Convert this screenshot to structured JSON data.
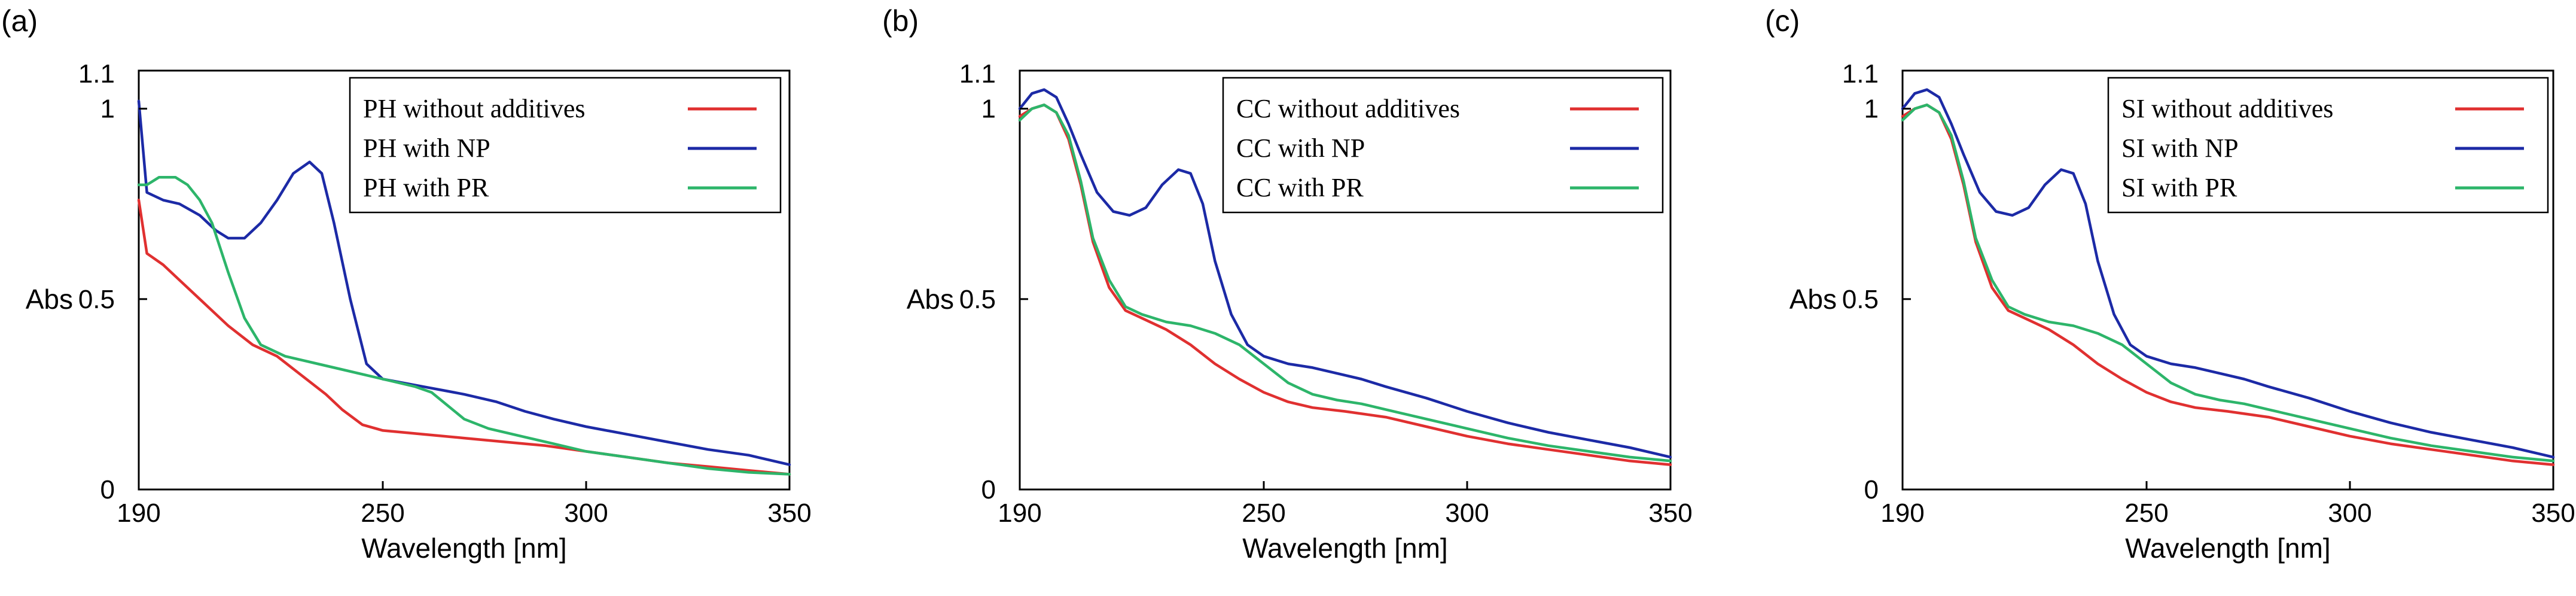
{
  "chart_data": [
    {
      "type": "line",
      "panel_label": "(a)",
      "xlabel": "Wavelength  [nm]",
      "ylabel": "Abs",
      "xlim": [
        190,
        350
      ],
      "ylim": [
        0,
        1.1
      ],
      "x_ticks": [
        190,
        250,
        300,
        350
      ],
      "y_ticks": [
        0,
        0.5,
        1
      ],
      "y_ticks_labels": [
        "0",
        "0.5",
        "1"
      ],
      "y_top_label": "1.1",
      "legend_position": "top-right",
      "series": [
        {
          "name": "PH without additives",
          "color": "#e03030",
          "points": [
            [
              190,
              0.76
            ],
            [
              192,
              0.62
            ],
            [
              196,
              0.59
            ],
            [
              200,
              0.55
            ],
            [
              206,
              0.49
            ],
            [
              212,
              0.43
            ],
            [
              218,
              0.38
            ],
            [
              224,
              0.35
            ],
            [
              230,
              0.3
            ],
            [
              236,
              0.25
            ],
            [
              240,
              0.21
            ],
            [
              245,
              0.17
            ],
            [
              250,
              0.155
            ],
            [
              260,
              0.145
            ],
            [
              270,
              0.135
            ],
            [
              280,
              0.125
            ],
            [
              290,
              0.115
            ],
            [
              300,
              0.1
            ],
            [
              310,
              0.085
            ],
            [
              320,
              0.07
            ],
            [
              330,
              0.06
            ],
            [
              340,
              0.05
            ],
            [
              350,
              0.04
            ]
          ]
        },
        {
          "name": "PH with NP",
          "color": "#1c2aa6",
          "points": [
            [
              190,
              1.02
            ],
            [
              192,
              0.78
            ],
            [
              196,
              0.76
            ],
            [
              200,
              0.75
            ],
            [
              205,
              0.72
            ],
            [
              209,
              0.68
            ],
            [
              212,
              0.66
            ],
            [
              216,
              0.66
            ],
            [
              220,
              0.7
            ],
            [
              224,
              0.76
            ],
            [
              228,
              0.83
            ],
            [
              232,
              0.86
            ],
            [
              235,
              0.83
            ],
            [
              238,
              0.7
            ],
            [
              242,
              0.5
            ],
            [
              246,
              0.33
            ],
            [
              250,
              0.29
            ],
            [
              255,
              0.28
            ],
            [
              260,
              0.27
            ],
            [
              265,
              0.26
            ],
            [
              270,
              0.25
            ],
            [
              278,
              0.23
            ],
            [
              285,
              0.205
            ],
            [
              292,
              0.185
            ],
            [
              300,
              0.165
            ],
            [
              310,
              0.145
            ],
            [
              320,
              0.125
            ],
            [
              330,
              0.105
            ],
            [
              340,
              0.09
            ],
            [
              350,
              0.065
            ]
          ]
        },
        {
          "name": "PH with PR",
          "color": "#2db56a",
          "points": [
            [
              190,
              0.8
            ],
            [
              192,
              0.8
            ],
            [
              195,
              0.82
            ],
            [
              199,
              0.82
            ],
            [
              202,
              0.8
            ],
            [
              205,
              0.76
            ],
            [
              208,
              0.7
            ],
            [
              212,
              0.57
            ],
            [
              216,
              0.45
            ],
            [
              220,
              0.38
            ],
            [
              226,
              0.35
            ],
            [
              234,
              0.33
            ],
            [
              240,
              0.315
            ],
            [
              246,
              0.3
            ],
            [
              252,
              0.285
            ],
            [
              258,
              0.27
            ],
            [
              262,
              0.255
            ],
            [
              266,
              0.22
            ],
            [
              270,
              0.185
            ],
            [
              276,
              0.16
            ],
            [
              284,
              0.14
            ],
            [
              292,
              0.12
            ],
            [
              300,
              0.1
            ],
            [
              310,
              0.085
            ],
            [
              320,
              0.07
            ],
            [
              330,
              0.055
            ],
            [
              340,
              0.045
            ],
            [
              350,
              0.04
            ]
          ]
        }
      ]
    },
    {
      "type": "line",
      "panel_label": "(b)",
      "xlabel": "Wavelength  [nm]",
      "ylabel": "Abs",
      "xlim": [
        190,
        350
      ],
      "ylim": [
        0,
        1.1
      ],
      "x_ticks": [
        190,
        250,
        300,
        350
      ],
      "y_ticks": [
        0,
        0.5,
        1
      ],
      "y_ticks_labels": [
        "0",
        "0.5",
        "1"
      ],
      "y_top_label": "1.1",
      "legend_position": "top-right",
      "series": [
        {
          "name": "CC without additives",
          "color": "#e03030",
          "points": [
            [
              190,
              0.98
            ],
            [
              193,
              1.0
            ],
            [
              196,
              1.01
            ],
            [
              199,
              0.99
            ],
            [
              202,
              0.92
            ],
            [
              205,
              0.8
            ],
            [
              208,
              0.65
            ],
            [
              212,
              0.53
            ],
            [
              216,
              0.47
            ],
            [
              220,
              0.45
            ],
            [
              226,
              0.42
            ],
            [
              232,
              0.38
            ],
            [
              238,
              0.33
            ],
            [
              244,
              0.29
            ],
            [
              250,
              0.255
            ],
            [
              256,
              0.23
            ],
            [
              262,
              0.215
            ],
            [
              270,
              0.205
            ],
            [
              280,
              0.19
            ],
            [
              290,
              0.165
            ],
            [
              300,
              0.14
            ],
            [
              310,
              0.12
            ],
            [
              320,
              0.105
            ],
            [
              330,
              0.09
            ],
            [
              340,
              0.075
            ],
            [
              350,
              0.065
            ]
          ]
        },
        {
          "name": "CC with NP",
          "color": "#1c2aa6",
          "points": [
            [
              190,
              1.0
            ],
            [
              193,
              1.04
            ],
            [
              196,
              1.05
            ],
            [
              199,
              1.03
            ],
            [
              202,
              0.96
            ],
            [
              205,
              0.88
            ],
            [
              209,
              0.78
            ],
            [
              213,
              0.73
            ],
            [
              217,
              0.72
            ],
            [
              221,
              0.74
            ],
            [
              225,
              0.8
            ],
            [
              229,
              0.84
            ],
            [
              232,
              0.83
            ],
            [
              235,
              0.75
            ],
            [
              238,
              0.6
            ],
            [
              242,
              0.46
            ],
            [
              246,
              0.38
            ],
            [
              250,
              0.35
            ],
            [
              256,
              0.33
            ],
            [
              262,
              0.32
            ],
            [
              268,
              0.305
            ],
            [
              274,
              0.29
            ],
            [
              280,
              0.27
            ],
            [
              290,
              0.24
            ],
            [
              300,
              0.205
            ],
            [
              310,
              0.175
            ],
            [
              320,
              0.15
            ],
            [
              330,
              0.13
            ],
            [
              340,
              0.11
            ],
            [
              350,
              0.085
            ]
          ]
        },
        {
          "name": "CC with PR",
          "color": "#2db56a",
          "points": [
            [
              190,
              0.97
            ],
            [
              193,
              1.0
            ],
            [
              196,
              1.01
            ],
            [
              199,
              0.99
            ],
            [
              202,
              0.93
            ],
            [
              205,
              0.81
            ],
            [
              208,
              0.66
            ],
            [
              212,
              0.55
            ],
            [
              216,
              0.48
            ],
            [
              220,
              0.46
            ],
            [
              226,
              0.44
            ],
            [
              232,
              0.43
            ],
            [
              238,
              0.41
            ],
            [
              244,
              0.38
            ],
            [
              250,
              0.33
            ],
            [
              256,
              0.28
            ],
            [
              262,
              0.25
            ],
            [
              268,
              0.235
            ],
            [
              274,
              0.225
            ],
            [
              280,
              0.21
            ],
            [
              290,
              0.185
            ],
            [
              300,
              0.16
            ],
            [
              310,
              0.135
            ],
            [
              320,
              0.115
            ],
            [
              330,
              0.1
            ],
            [
              340,
              0.085
            ],
            [
              350,
              0.075
            ]
          ]
        }
      ]
    },
    {
      "type": "line",
      "panel_label": "(c)",
      "xlabel": "Wavelength  [nm]",
      "ylabel": "Abs",
      "xlim": [
        190,
        350
      ],
      "ylim": [
        0,
        1.1
      ],
      "x_ticks": [
        190,
        250,
        300,
        350
      ],
      "y_ticks": [
        0,
        0.5,
        1
      ],
      "y_ticks_labels": [
        "0",
        "0.5",
        "1"
      ],
      "y_top_label": "1.1",
      "legend_position": "top-right",
      "series": [
        {
          "name": "SI without additives",
          "color": "#e03030",
          "points": [
            [
              190,
              0.98
            ],
            [
              193,
              1.0
            ],
            [
              196,
              1.01
            ],
            [
              199,
              0.99
            ],
            [
              202,
              0.92
            ],
            [
              205,
              0.8
            ],
            [
              208,
              0.65
            ],
            [
              212,
              0.53
            ],
            [
              216,
              0.47
            ],
            [
              220,
              0.45
            ],
            [
              226,
              0.42
            ],
            [
              232,
              0.38
            ],
            [
              238,
              0.33
            ],
            [
              244,
              0.29
            ],
            [
              250,
              0.255
            ],
            [
              256,
              0.23
            ],
            [
              262,
              0.215
            ],
            [
              270,
              0.205
            ],
            [
              280,
              0.19
            ],
            [
              290,
              0.165
            ],
            [
              300,
              0.14
            ],
            [
              310,
              0.12
            ],
            [
              320,
              0.105
            ],
            [
              330,
              0.09
            ],
            [
              340,
              0.075
            ],
            [
              350,
              0.065
            ]
          ]
        },
        {
          "name": "SI with NP",
          "color": "#1c2aa6",
          "points": [
            [
              190,
              1.0
            ],
            [
              193,
              1.04
            ],
            [
              196,
              1.05
            ],
            [
              199,
              1.03
            ],
            [
              202,
              0.96
            ],
            [
              205,
              0.88
            ],
            [
              209,
              0.78
            ],
            [
              213,
              0.73
            ],
            [
              217,
              0.72
            ],
            [
              221,
              0.74
            ],
            [
              225,
              0.8
            ],
            [
              229,
              0.84
            ],
            [
              232,
              0.83
            ],
            [
              235,
              0.75
            ],
            [
              238,
              0.6
            ],
            [
              242,
              0.46
            ],
            [
              246,
              0.38
            ],
            [
              250,
              0.35
            ],
            [
              256,
              0.33
            ],
            [
              262,
              0.32
            ],
            [
              268,
              0.305
            ],
            [
              274,
              0.29
            ],
            [
              280,
              0.27
            ],
            [
              290,
              0.24
            ],
            [
              300,
              0.205
            ],
            [
              310,
              0.175
            ],
            [
              320,
              0.15
            ],
            [
              330,
              0.13
            ],
            [
              340,
              0.11
            ],
            [
              350,
              0.085
            ]
          ]
        },
        {
          "name": "SI with PR",
          "color": "#2db56a",
          "points": [
            [
              190,
              0.97
            ],
            [
              193,
              1.0
            ],
            [
              196,
              1.01
            ],
            [
              199,
              0.99
            ],
            [
              202,
              0.93
            ],
            [
              205,
              0.81
            ],
            [
              208,
              0.66
            ],
            [
              212,
              0.55
            ],
            [
              216,
              0.48
            ],
            [
              220,
              0.46
            ],
            [
              226,
              0.44
            ],
            [
              232,
              0.43
            ],
            [
              238,
              0.41
            ],
            [
              244,
              0.38
            ],
            [
              250,
              0.33
            ],
            [
              256,
              0.28
            ],
            [
              262,
              0.25
            ],
            [
              268,
              0.235
            ],
            [
              274,
              0.225
            ],
            [
              280,
              0.21
            ],
            [
              290,
              0.185
            ],
            [
              300,
              0.16
            ],
            [
              310,
              0.135
            ],
            [
              320,
              0.115
            ],
            [
              330,
              0.1
            ],
            [
              340,
              0.085
            ],
            [
              350,
              0.075
            ]
          ]
        }
      ]
    }
  ]
}
